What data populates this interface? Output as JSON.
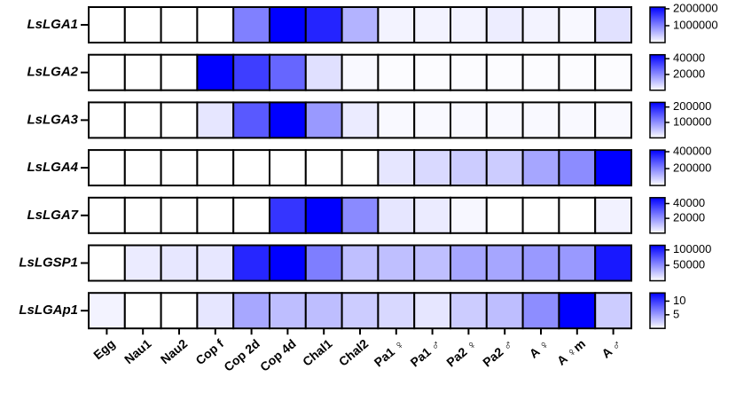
{
  "chart_data": {
    "type": "heatmap",
    "categories": [
      "Egg",
      "Nau1",
      "Nau2",
      "Cop f",
      "Cop 2d",
      "Cop 4d",
      "Chal1",
      "Chal2",
      "Pa1 ♀",
      "Pa1 ♂",
      "Pa2 ♀",
      "Pa2 ♂",
      "A ♀",
      "A ♀m",
      "A ♂"
    ],
    "color_low": "#ffffff",
    "color_high": "#0000ff",
    "rows": [
      {
        "name": "LsLGA1",
        "values": [
          0,
          0,
          0,
          0,
          1050000,
          2100000,
          1800000,
          630000,
          100000,
          100000,
          100000,
          150000,
          100000,
          60000,
          250000
        ],
        "zlim": [
          0,
          2100000
        ],
        "zticks": [
          1000000,
          2000000
        ]
      },
      {
        "name": "LsLGA2",
        "values": [
          0,
          0,
          0,
          45000,
          34000,
          27000,
          5400,
          1000,
          500,
          500,
          500,
          500,
          500,
          500,
          500
        ],
        "zlim": [
          0,
          45000
        ],
        "zticks": [
          20000,
          40000
        ]
      },
      {
        "name": "LsLGA3",
        "values": [
          0,
          0,
          0,
          23000,
          150000,
          230000,
          92000,
          18000,
          5000,
          5000,
          5000,
          5000,
          5000,
          5000,
          5000
        ],
        "zlim": [
          0,
          230000
        ],
        "zticks": [
          100000,
          200000
        ]
      },
      {
        "name": "LsLGA4",
        "values": [
          0,
          0,
          0,
          0,
          0,
          0,
          0,
          0,
          42000,
          63000,
          84000,
          84000,
          147000,
          189000,
          420000
        ],
        "zlim": [
          0,
          420000
        ],
        "zticks": [
          200000,
          400000
        ]
      },
      {
        "name": "LsLGA7",
        "values": [
          0,
          0,
          0,
          0,
          0,
          38000,
          48000,
          22000,
          4800,
          3800,
          1500,
          0,
          0,
          0,
          2400
        ],
        "zlim": [
          0,
          48000
        ],
        "zticks": [
          20000,
          40000
        ]
      },
      {
        "name": "LsLGSP1",
        "values": [
          0,
          9000,
          11000,
          11000,
          98000,
          115000,
          58000,
          29000,
          29000,
          29000,
          40000,
          40000,
          46000,
          46000,
          104000
        ],
        "zlim": [
          0,
          115000
        ],
        "zticks": [
          50000,
          100000
        ]
      },
      {
        "name": "LsLGAp1",
        "values": [
          0.6,
          0,
          0,
          1.3,
          4.5,
          3.3,
          3.3,
          2.6,
          2,
          1.3,
          2.6,
          3.3,
          5.8,
          13,
          2.6
        ],
        "zlim": [
          0,
          13
        ],
        "zticks": [
          5,
          10
        ]
      }
    ]
  }
}
